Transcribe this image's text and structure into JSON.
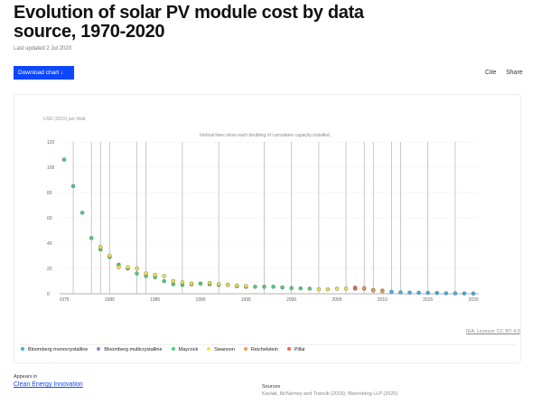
{
  "header": {
    "title": "Evolution of solar PV module cost by data source, 1970-2020",
    "updated": "Last updated 2 Jul 2020",
    "download": "Download chart ↓",
    "cite": "Cite",
    "share": "Share"
  },
  "footer": {
    "licence": "IEA. Licence: CC BY 4.0",
    "appears_label": "Appears in",
    "appears_link": "Clean Energy Innovation",
    "sources_label": "Sources",
    "sources": "Kavlak, McNerney and Trancik (2018); Bloomberg LLP (2020)"
  },
  "chart_data": {
    "type": "scatter",
    "ylabel": "USD (2015) per Watt",
    "annotation": "Vertical lines show each doubling of cumulative capacity installed.",
    "xlim": [
      1975,
      2020
    ],
    "ylim": [
      0,
      120
    ],
    "xticks": [
      1975,
      1980,
      1985,
      1990,
      1995,
      2000,
      2005,
      2010,
      2015,
      2020
    ],
    "yticks": [
      0,
      20,
      40,
      60,
      80,
      100,
      120
    ],
    "grid": true,
    "legend": "bottom",
    "doubling_years": [
      1976,
      1978,
      1979,
      1980,
      1983,
      1984,
      1988,
      1992,
      1997,
      2000,
      2003,
      2006,
      2008,
      2009,
      2011,
      2012,
      2015,
      2018
    ],
    "series": [
      {
        "name": "Bloomberg monocrystalline",
        "color": "#3bb3e4",
        "points": [
          [
            2011,
            1.5
          ],
          [
            2012,
            1.1
          ],
          [
            2013,
            0.9
          ],
          [
            2014,
            0.8
          ],
          [
            2015,
            0.7
          ],
          [
            2016,
            0.6
          ],
          [
            2017,
            0.4
          ],
          [
            2018,
            0.3
          ],
          [
            2019,
            0.25
          ],
          [
            2020,
            0.2
          ]
        ]
      },
      {
        "name": "Bloomberg multicrystalline",
        "color": "#9d7cd8",
        "points": []
      },
      {
        "name": "Maycock",
        "color": "#4cd07d",
        "points": [
          [
            1975,
            106
          ],
          [
            1976,
            85
          ],
          [
            1977,
            64
          ],
          [
            1978,
            44
          ],
          [
            1979,
            35
          ],
          [
            1980,
            29
          ],
          [
            1981,
            23
          ],
          [
            1982,
            20
          ],
          [
            1983,
            16
          ],
          [
            1984,
            14
          ],
          [
            1985,
            13
          ],
          [
            1986,
            10
          ],
          [
            1987,
            7.5
          ],
          [
            1988,
            7
          ],
          [
            1989,
            7.5
          ],
          [
            1990,
            8
          ],
          [
            1991,
            7.5
          ],
          [
            1992,
            7
          ],
          [
            1993,
            7
          ],
          [
            1994,
            6
          ],
          [
            1995,
            5.5
          ],
          [
            1996,
            5.5
          ],
          [
            1997,
            5.5
          ],
          [
            1998,
            5.5
          ],
          [
            1999,
            5
          ],
          [
            2000,
            4.5
          ],
          [
            2001,
            4.2
          ],
          [
            2002,
            4
          ]
        ]
      },
      {
        "name": "Swanson",
        "color": "#f2e63d",
        "points": [
          [
            1979,
            37
          ],
          [
            1980,
            30
          ],
          [
            1981,
            21
          ],
          [
            1982,
            21
          ],
          [
            1983,
            20
          ],
          [
            1984,
            16
          ],
          [
            1985,
            15
          ],
          [
            1986,
            14
          ],
          [
            1987,
            10
          ],
          [
            1988,
            9
          ],
          [
            1989,
            8
          ],
          [
            1991,
            8.5
          ],
          [
            1992,
            7.5
          ],
          [
            1993,
            7
          ],
          [
            1994,
            6.5
          ],
          [
            1995,
            6
          ],
          [
            2003,
            3.5
          ],
          [
            2004,
            3.5
          ],
          [
            2005,
            4
          ],
          [
            2006,
            4
          ],
          [
            2007,
            4
          ],
          [
            2008,
            4
          ],
          [
            2009,
            3
          ],
          [
            2010,
            2.5
          ]
        ]
      },
      {
        "name": "Reichelstein",
        "color": "#e5a24a",
        "points": [
          [
            2007,
            4.5
          ],
          [
            2008,
            4.5
          ],
          [
            2009,
            2.5
          ],
          [
            2010,
            2
          ]
        ]
      },
      {
        "name": "Pillai",
        "color": "#ef6a4c",
        "points": [
          [
            2007,
            4.8
          ]
        ]
      }
    ]
  }
}
